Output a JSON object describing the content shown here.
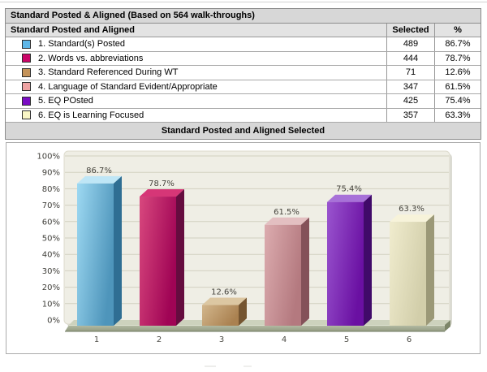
{
  "report": {
    "title": "Standard Posted & Aligned (Based on 564 walk-throughs)",
    "table": {
      "header": {
        "label": "Standard Posted and Aligned",
        "selected": "Selected",
        "percent": "%"
      },
      "rows": [
        {
          "label": "1. Standard(s) Posted",
          "selected": "489",
          "percent": "86.7%",
          "swatch": "#5fb7e8"
        },
        {
          "label": "2. Words vs. abbreviations",
          "selected": "444",
          "percent": "78.7%",
          "swatch": "#cb0568"
        },
        {
          "label": "3. Standard Referenced During WT",
          "selected": "71",
          "percent": "12.6%",
          "swatch": "#c49258"
        },
        {
          "label": "4. Language of Standard Evident/Appropriate",
          "selected": "347",
          "percent": "61.5%",
          "swatch": "#efa3a3"
        },
        {
          "label": "5. EQ POsted",
          "selected": "425",
          "percent": "75.4%",
          "swatch": "#7a0cc4"
        },
        {
          "label": "6. EQ is Learning Focused",
          "selected": "357",
          "percent": "63.3%",
          "swatch": "#f9f6c6"
        }
      ]
    },
    "chart_title": "Standard Posted and Aligned Selected"
  },
  "chart_data": {
    "type": "bar",
    "style": "3d",
    "title": "Standard Posted and Aligned Selected",
    "categories": [
      "1",
      "2",
      "3",
      "4",
      "5",
      "6"
    ],
    "values": [
      86.7,
      78.7,
      12.6,
      61.5,
      75.4,
      63.3
    ],
    "value_labels": [
      "86.7%",
      "78.7%",
      "12.6%",
      "61.5%",
      "75.4%",
      "63.3%"
    ],
    "xlabel": "",
    "ylabel": "",
    "ylim": [
      0,
      100
    ],
    "ytick_labels": [
      "0%",
      "10%",
      "20%",
      "30%",
      "40%",
      "50%",
      "60%",
      "70%",
      "80%",
      "90%",
      "100%"
    ],
    "grid": true,
    "legend_position": "none",
    "plot_bg": "#efeee5",
    "gridline_color": "#d2d0c0",
    "label_color": "#45433c",
    "bar_colors": [
      {
        "front_light": "#9ed9f2",
        "front_dark": "#4e95bb",
        "top": "#bfe6f6",
        "side": "#2f6e93"
      },
      {
        "front_light": "#d8487e",
        "front_dark": "#a00455",
        "top": "#d63677",
        "side": "#650c3f"
      },
      {
        "front_light": "#d2b68c",
        "front_dark": "#aa8150",
        "top": "#dcc7a2",
        "side": "#755531"
      },
      {
        "front_light": "#dcacaf",
        "front_dark": "#b4797f",
        "top": "#e3bfc1",
        "side": "#845159"
      },
      {
        "front_light": "#9a55cf",
        "front_dark": "#6a10a2",
        "top": "#a771d8",
        "side": "#400a69"
      },
      {
        "front_light": "#f0ecce",
        "front_dark": "#d2ceaa",
        "top": "#f7f3da",
        "side": "#9b9877"
      }
    ],
    "floor_colors": {
      "top": "#cdd2bd",
      "front_light": "#b6bda6",
      "front_dark": "#939c82",
      "cap": "#7d8669"
    }
  }
}
